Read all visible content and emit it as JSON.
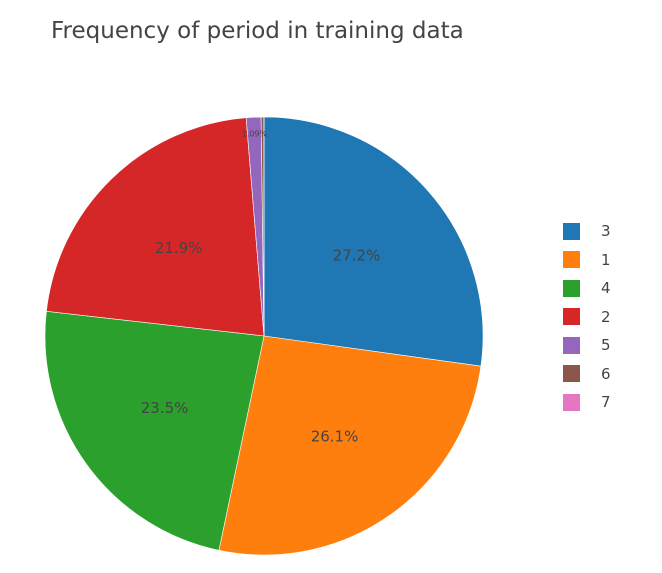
{
  "chart_data": {
    "type": "pie",
    "title": "Frequency of period in training data",
    "categories": [
      "3",
      "1",
      "4",
      "2",
      "5",
      "6",
      "7"
    ],
    "values": [
      27.2,
      26.1,
      23.5,
      21.9,
      1.09,
      0.2,
      0.01
    ],
    "slice_labels": [
      "27.2%",
      "26.1%",
      "23.5%",
      "21.9%",
      "1.09%",
      "",
      ""
    ],
    "colors": [
      "#1f77b4",
      "#ff7f0e",
      "#2ca02c",
      "#d62728",
      "#9467bd",
      "#8c564b",
      "#e377c2"
    ],
    "direction": "clockwise",
    "legend_position": "right"
  }
}
